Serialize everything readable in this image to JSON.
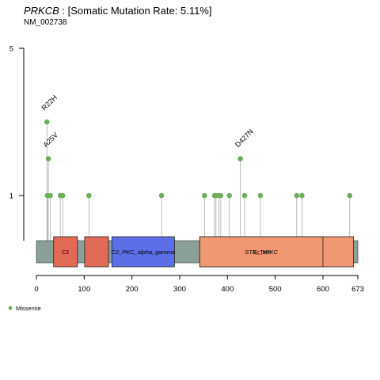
{
  "title": {
    "gene": "PRKCB",
    "rate_text": " : [Somatic Mutation Rate: 5.11%]"
  },
  "subtitle": "NM_002738",
  "colors": {
    "missense": "#6ab05a",
    "stem": "#aaaaaa",
    "backbone": "#8a9f9a",
    "C1": "#e06a56",
    "C2_PKC_alpha_gamma": "#5d6fe8",
    "S_TKc": "#f5cf7f",
    "STKc_cPKC": "#ef9872"
  },
  "chart_data": {
    "type": "lollipop",
    "protein_length": 673,
    "xlim": [
      0,
      673
    ],
    "ylim": [
      0,
      5
    ],
    "x_ticks": [
      0,
      100,
      200,
      300,
      400,
      500,
      600,
      673
    ],
    "y_ticks": [
      1,
      5
    ],
    "domains": [
      {
        "name": "C1",
        "label": "C1",
        "start": 36,
        "end": 86
      },
      {
        "name": "C1",
        "label": "",
        "start": 101,
        "end": 151
      },
      {
        "name": "C2_PKC_alpha_gamma",
        "label": "C2_PKC_alpha_gamma",
        "start": 158,
        "end": 289
      },
      {
        "name": "S_TKc",
        "label": "S_TKc",
        "start": 342,
        "end": 600
      },
      {
        "name": "STKc_cPKC",
        "label": "STKc_cPKC",
        "start": 342,
        "end": 600
      },
      {
        "name": "STKc_cPKC",
        "label": "",
        "start": 600,
        "end": 664
      }
    ],
    "mutations": [
      {
        "pos": 22,
        "count": 3,
        "label": "R22H"
      },
      {
        "pos": 25,
        "count": 2,
        "label": "A25V"
      },
      {
        "pos": 23,
        "count": 1,
        "label": ""
      },
      {
        "pos": 29,
        "count": 1,
        "label": ""
      },
      {
        "pos": 50,
        "count": 1,
        "label": ""
      },
      {
        "pos": 55,
        "count": 1,
        "label": ""
      },
      {
        "pos": 110,
        "count": 1,
        "label": ""
      },
      {
        "pos": 262,
        "count": 1,
        "label": ""
      },
      {
        "pos": 352,
        "count": 1,
        "label": ""
      },
      {
        "pos": 373,
        "count": 1,
        "label": ""
      },
      {
        "pos": 376,
        "count": 1,
        "label": ""
      },
      {
        "pos": 382,
        "count": 1,
        "label": ""
      },
      {
        "pos": 386,
        "count": 1,
        "label": ""
      },
      {
        "pos": 404,
        "count": 1,
        "label": ""
      },
      {
        "pos": 427,
        "count": 2,
        "label": "D427N"
      },
      {
        "pos": 436,
        "count": 1,
        "label": ""
      },
      {
        "pos": 469,
        "count": 1,
        "label": ""
      },
      {
        "pos": 545,
        "count": 1,
        "label": ""
      },
      {
        "pos": 556,
        "count": 1,
        "label": ""
      },
      {
        "pos": 656,
        "count": 1,
        "label": ""
      }
    ],
    "legend": [
      {
        "name": "Missense"
      }
    ]
  }
}
